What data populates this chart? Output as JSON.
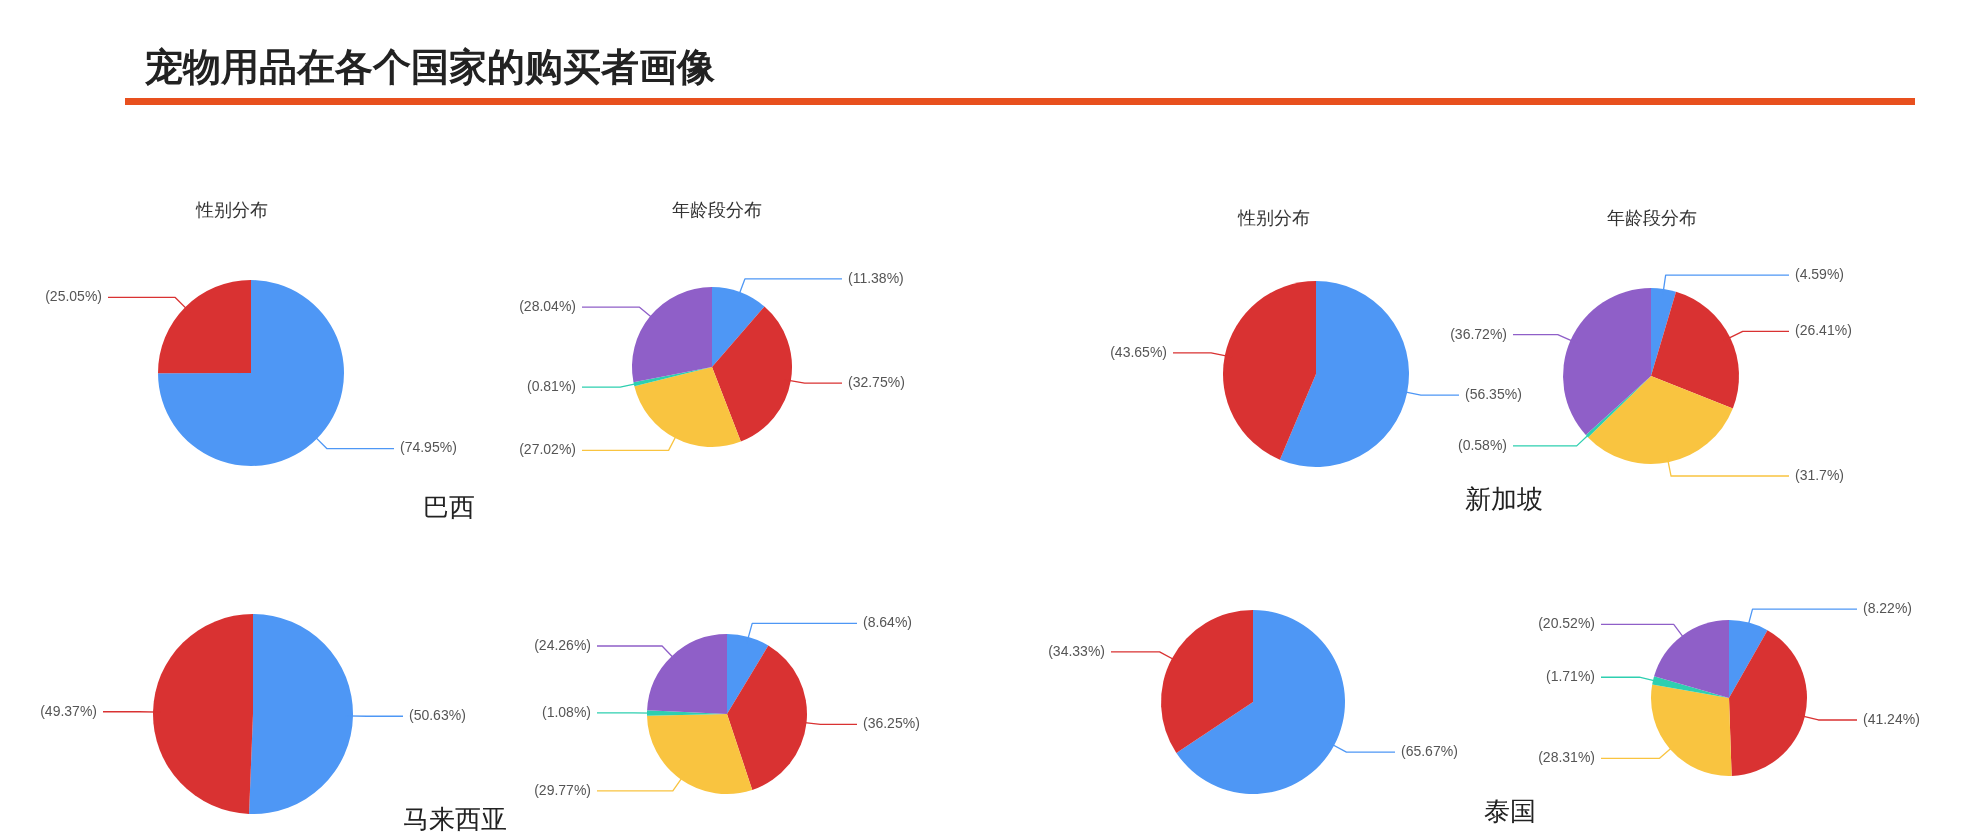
{
  "chart_data": [
    {
      "type": "pie",
      "title": "性别分布",
      "annotations": [
        "宠物用品在各个国家的购买者画像",
        "巴西"
      ],
      "categories": [
        null,
        null
      ],
      "values": [
        74.95,
        25.05
      ],
      "colors": [
        "#4e97f5",
        "#d93232"
      ],
      "value_labels": [
        "(74.95%)",
        "(25.05%)"
      ],
      "legend": false
    },
    {
      "type": "pie",
      "title": "年龄段分布",
      "categories": [
        null,
        null,
        null,
        null,
        null
      ],
      "values": [
        11.38,
        32.75,
        27.02,
        0.81,
        28.04
      ],
      "colors": [
        "#4e97f5",
        "#d93232",
        "#f9c440",
        "#2ecfb0",
        "#8f5fc8"
      ],
      "value_labels": [
        "(11.38%)",
        "(32.75%)",
        "(27.02%)",
        "(0.81%)",
        "(28.04%)"
      ],
      "legend": false
    },
    {
      "type": "pie",
      "title": "性别分布",
      "annotations": [
        "新加坡"
      ],
      "categories": [
        null,
        null
      ],
      "values": [
        56.35,
        43.65
      ],
      "colors": [
        "#4e97f5",
        "#d93232"
      ],
      "value_labels": [
        "(56.35%)",
        "(43.65%)"
      ],
      "legend": false
    },
    {
      "type": "pie",
      "title": "年龄段分布",
      "categories": [
        null,
        null,
        null,
        null,
        null
      ],
      "values": [
        4.59,
        26.41,
        31.7,
        0.58,
        36.72
      ],
      "colors": [
        "#4e97f5",
        "#d93232",
        "#f9c440",
        "#2ecfb0",
        "#8f5fc8"
      ],
      "value_labels": [
        "(4.59%)",
        "(26.41%)",
        "(31.7%)",
        "(0.58%)",
        "(36.72%)"
      ],
      "legend": false
    },
    {
      "type": "pie",
      "annotations": [
        "马来西亚"
      ],
      "categories": [
        null,
        null
      ],
      "values": [
        50.63,
        49.37
      ],
      "colors": [
        "#4e97f5",
        "#d93232"
      ],
      "value_labels": [
        "(50.63%)",
        "(49.37%)"
      ],
      "legend": false
    },
    {
      "type": "pie",
      "categories": [
        null,
        null,
        null,
        null,
        null
      ],
      "values": [
        8.64,
        36.25,
        29.77,
        1.08,
        24.26
      ],
      "colors": [
        "#4e97f5",
        "#d93232",
        "#f9c440",
        "#2ecfb0",
        "#8f5fc8"
      ],
      "value_labels": [
        "(8.64%)",
        "(36.25%)",
        "(29.77%)",
        "(1.08%)",
        "(24.26%)"
      ],
      "legend": false
    },
    {
      "type": "pie",
      "annotations": [
        "泰国"
      ],
      "categories": [
        null,
        null
      ],
      "values": [
        65.67,
        34.33
      ],
      "colors": [
        "#4e97f5",
        "#d93232"
      ],
      "value_labels": [
        "(65.67%)",
        "(34.33%)"
      ],
      "legend": false
    },
    {
      "type": "pie",
      "categories": [
        null,
        null,
        null,
        null,
        null
      ],
      "values": [
        8.22,
        41.24,
        28.31,
        1.71,
        20.52
      ],
      "colors": [
        "#4e97f5",
        "#d93232",
        "#f9c440",
        "#2ecfb0",
        "#8f5fc8"
      ],
      "value_labels": [
        "(8.22%)",
        "(41.24%)",
        "(28.31%)",
        "(1.71%)",
        "(20.52%)"
      ],
      "legend": false
    }
  ]
}
